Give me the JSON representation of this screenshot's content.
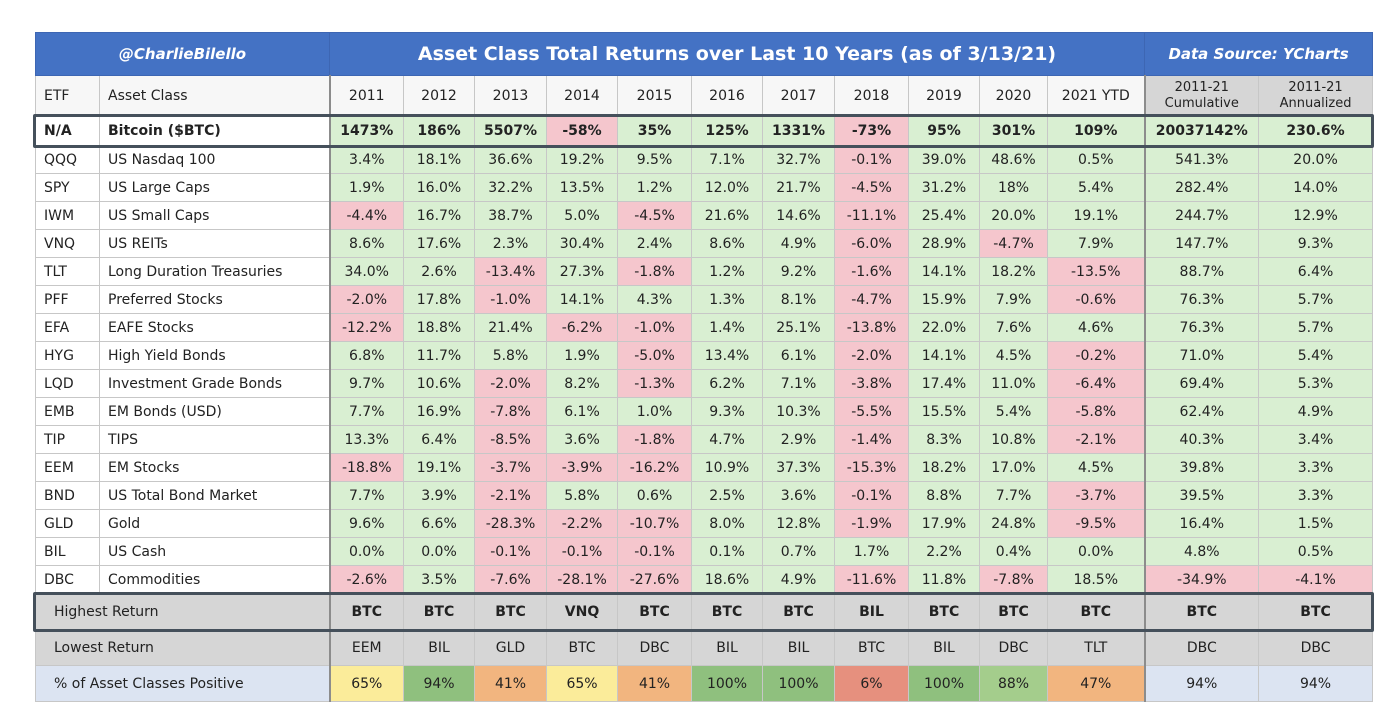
{
  "header": {
    "handle": "@CharlieBilello",
    "title": "Asset Class Total Returns over Last 10 Years (as of 3/13/21)",
    "source": "Data Source: YCharts"
  },
  "columns": {
    "etf": "ETF",
    "asset_class": "Asset Class",
    "years": [
      "2011",
      "2012",
      "2013",
      "2014",
      "2015",
      "2016",
      "2017",
      "2018",
      "2019",
      "2020",
      "2021 YTD"
    ],
    "cumulative": [
      "2011-21",
      "Cumulative"
    ],
    "annualized": [
      "2011-21",
      "Annualized"
    ]
  },
  "chart_data": {
    "type": "table",
    "title": "Asset Class Total Returns over Last 10 Years (as of 3/13/21)",
    "rows": [
      {
        "etf": "N/A",
        "name": "Bitcoin ($BTC)",
        "values": [
          "1473%",
          "186%",
          "5507%",
          "-58%",
          "35%",
          "125%",
          "1331%",
          "-73%",
          "95%",
          "301%",
          "109%"
        ],
        "cumulative": "20037142%",
        "annualized": "230.6%"
      },
      {
        "etf": "QQQ",
        "name": "US Nasdaq 100",
        "values": [
          "3.4%",
          "18.1%",
          "36.6%",
          "19.2%",
          "9.5%",
          "7.1%",
          "32.7%",
          "-0.1%",
          "39.0%",
          "48.6%",
          "0.5%"
        ],
        "cumulative": "541.3%",
        "annualized": "20.0%"
      },
      {
        "etf": "SPY",
        "name": "US Large Caps",
        "values": [
          "1.9%",
          "16.0%",
          "32.2%",
          "13.5%",
          "1.2%",
          "12.0%",
          "21.7%",
          "-4.5%",
          "31.2%",
          "18%",
          "5.4%"
        ],
        "cumulative": "282.4%",
        "annualized": "14.0%"
      },
      {
        "etf": "IWM",
        "name": "US Small Caps",
        "values": [
          "-4.4%",
          "16.7%",
          "38.7%",
          "5.0%",
          "-4.5%",
          "21.6%",
          "14.6%",
          "-11.1%",
          "25.4%",
          "20.0%",
          "19.1%"
        ],
        "cumulative": "244.7%",
        "annualized": "12.9%"
      },
      {
        "etf": "VNQ",
        "name": "US REITs",
        "values": [
          "8.6%",
          "17.6%",
          "2.3%",
          "30.4%",
          "2.4%",
          "8.6%",
          "4.9%",
          "-6.0%",
          "28.9%",
          "-4.7%",
          "7.9%"
        ],
        "cumulative": "147.7%",
        "annualized": "9.3%"
      },
      {
        "etf": "TLT",
        "name": "Long Duration Treasuries",
        "values": [
          "34.0%",
          "2.6%",
          "-13.4%",
          "27.3%",
          "-1.8%",
          "1.2%",
          "9.2%",
          "-1.6%",
          "14.1%",
          "18.2%",
          "-13.5%"
        ],
        "cumulative": "88.7%",
        "annualized": "6.4%"
      },
      {
        "etf": "PFF",
        "name": "Preferred Stocks",
        "values": [
          "-2.0%",
          "17.8%",
          "-1.0%",
          "14.1%",
          "4.3%",
          "1.3%",
          "8.1%",
          "-4.7%",
          "15.9%",
          "7.9%",
          "-0.6%"
        ],
        "cumulative": "76.3%",
        "annualized": "5.7%"
      },
      {
        "etf": "EFA",
        "name": "EAFE Stocks",
        "values": [
          "-12.2%",
          "18.8%",
          "21.4%",
          "-6.2%",
          "-1.0%",
          "1.4%",
          "25.1%",
          "-13.8%",
          "22.0%",
          "7.6%",
          "4.6%"
        ],
        "cumulative": "76.3%",
        "annualized": "5.7%"
      },
      {
        "etf": "HYG",
        "name": "High Yield Bonds",
        "values": [
          "6.8%",
          "11.7%",
          "5.8%",
          "1.9%",
          "-5.0%",
          "13.4%",
          "6.1%",
          "-2.0%",
          "14.1%",
          "4.5%",
          "-0.2%"
        ],
        "cumulative": "71.0%",
        "annualized": "5.4%"
      },
      {
        "etf": "LQD",
        "name": "Investment Grade Bonds",
        "values": [
          "9.7%",
          "10.6%",
          "-2.0%",
          "8.2%",
          "-1.3%",
          "6.2%",
          "7.1%",
          "-3.8%",
          "17.4%",
          "11.0%",
          "-6.4%"
        ],
        "cumulative": "69.4%",
        "annualized": "5.3%"
      },
      {
        "etf": "EMB",
        "name": "EM Bonds (USD)",
        "values": [
          "7.7%",
          "16.9%",
          "-7.8%",
          "6.1%",
          "1.0%",
          "9.3%",
          "10.3%",
          "-5.5%",
          "15.5%",
          "5.4%",
          "-5.8%"
        ],
        "cumulative": "62.4%",
        "annualized": "4.9%"
      },
      {
        "etf": "TIP",
        "name": "TIPS",
        "values": [
          "13.3%",
          "6.4%",
          "-8.5%",
          "3.6%",
          "-1.8%",
          "4.7%",
          "2.9%",
          "-1.4%",
          "8.3%",
          "10.8%",
          "-2.1%"
        ],
        "cumulative": "40.3%",
        "annualized": "3.4%"
      },
      {
        "etf": "EEM",
        "name": "EM Stocks",
        "values": [
          "-18.8%",
          "19.1%",
          "-3.7%",
          "-3.9%",
          "-16.2%",
          "10.9%",
          "37.3%",
          "-15.3%",
          "18.2%",
          "17.0%",
          "4.5%"
        ],
        "cumulative": "39.8%",
        "annualized": "3.3%"
      },
      {
        "etf": "BND",
        "name": "US Total Bond Market",
        "values": [
          "7.7%",
          "3.9%",
          "-2.1%",
          "5.8%",
          "0.6%",
          "2.5%",
          "3.6%",
          "-0.1%",
          "8.8%",
          "7.7%",
          "-3.7%"
        ],
        "cumulative": "39.5%",
        "annualized": "3.3%"
      },
      {
        "etf": "GLD",
        "name": "Gold",
        "values": [
          "9.6%",
          "6.6%",
          "-28.3%",
          "-2.2%",
          "-10.7%",
          "8.0%",
          "12.8%",
          "-1.9%",
          "17.9%",
          "24.8%",
          "-9.5%"
        ],
        "cumulative": "16.4%",
        "annualized": "1.5%"
      },
      {
        "etf": "BIL",
        "name": "US Cash",
        "values": [
          "0.0%",
          "0.0%",
          "-0.1%",
          "-0.1%",
          "-0.1%",
          "0.1%",
          "0.7%",
          "1.7%",
          "2.2%",
          "0.4%",
          "0.0%"
        ],
        "cumulative": "4.8%",
        "annualized": "0.5%"
      },
      {
        "etf": "DBC",
        "name": "Commodities",
        "values": [
          "-2.6%",
          "3.5%",
          "-7.6%",
          "-28.1%",
          "-27.6%",
          "18.6%",
          "4.9%",
          "-11.6%",
          "11.8%",
          "-7.8%",
          "18.5%"
        ],
        "cumulative": "-34.9%",
        "annualized": "-4.1%"
      }
    ],
    "summary": {
      "highest": {
        "label": "Highest Return",
        "values": [
          "BTC",
          "BTC",
          "BTC",
          "VNQ",
          "BTC",
          "BTC",
          "BTC",
          "BIL",
          "BTC",
          "BTC",
          "BTC",
          "BTC",
          "BTC"
        ]
      },
      "lowest": {
        "label": "Lowest Return",
        "values": [
          "EEM",
          "BIL",
          "GLD",
          "BTC",
          "DBC",
          "BIL",
          "BIL",
          "BTC",
          "BIL",
          "DBC",
          "TLT",
          "DBC",
          "DBC"
        ]
      },
      "positive": {
        "label": "% of Asset Classes Positive",
        "values": [
          "65%",
          "94%",
          "41%",
          "65%",
          "41%",
          "100%",
          "100%",
          "6%",
          "100%",
          "88%",
          "47%",
          "94%",
          "94%"
        ],
        "colors": [
          "#fbec9a",
          "#8fc07e",
          "#f2b57f",
          "#fbec9a",
          "#f2b57f",
          "#8fc07e",
          "#8fc07e",
          "#e6907e",
          "#8fc07e",
          "#a4cd8c",
          "#f2b57f",
          "#dce4f2",
          "#dce4f2"
        ]
      }
    },
    "colors": {
      "positive": "#d9efd2",
      "negative": "#f5c6cd",
      "header": "#4472c4"
    }
  }
}
